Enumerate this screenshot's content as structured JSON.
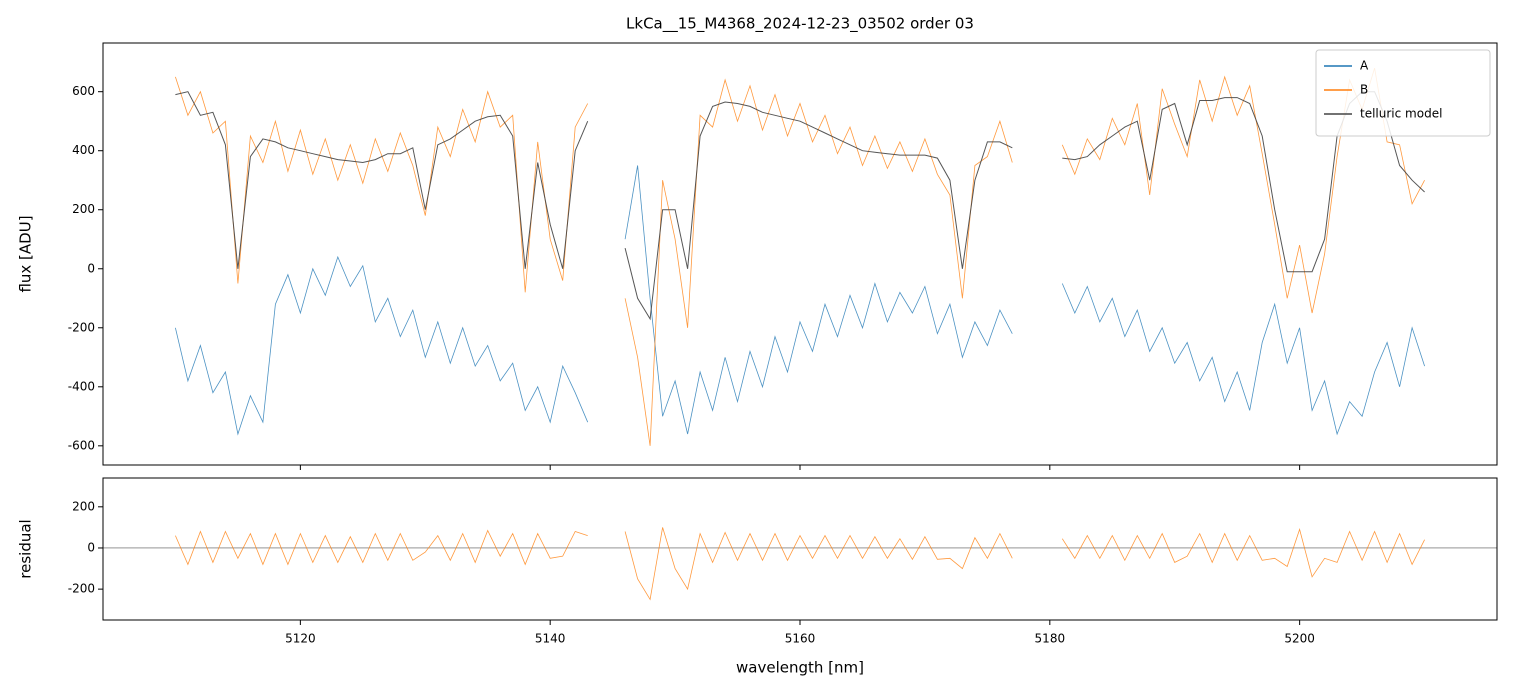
{
  "chart_data": [
    {
      "type": "line",
      "title": "LkCa__15_M4368_2024-12-23_03502  order 03",
      "ylabel": "flux [ADU]",
      "x": [
        5110,
        5111,
        5112,
        5113,
        5114,
        5115,
        5116,
        5117,
        5118,
        5119,
        5120,
        5121,
        5122,
        5123,
        5124,
        5125,
        5126,
        5127,
        5128,
        5129,
        5130,
        5131,
        5132,
        5133,
        5134,
        5135,
        5136,
        5137,
        5138,
        5139,
        5140,
        5141,
        5142,
        5143,
        5144.5,
        5146,
        5147,
        5148,
        5149,
        5150,
        5151,
        5152,
        5153,
        5154,
        5155,
        5156,
        5157,
        5158,
        5159,
        5160,
        5161,
        5162,
        5163,
        5164,
        5165,
        5166,
        5167,
        5168,
        5169,
        5170,
        5171,
        5172,
        5173,
        5174,
        5175,
        5176,
        5177,
        5179,
        5181,
        5182,
        5183,
        5184,
        5185,
        5186,
        5187,
        5188,
        5189,
        5190,
        5191,
        5192,
        5193,
        5194,
        5195,
        5196,
        5197,
        5198,
        5199,
        5200,
        5201,
        5202,
        5203,
        5204,
        5205,
        5206,
        5207,
        5208,
        5209,
        5210
      ],
      "series": [
        {
          "name": "A",
          "color": "#1f77b4",
          "values": [
            -200,
            -380,
            -260,
            -420,
            -350,
            -560,
            -430,
            -520,
            -120,
            -20,
            -150,
            0,
            -90,
            40,
            -60,
            10,
            -180,
            -100,
            -230,
            -140,
            -300,
            -180,
            -320,
            -200,
            -330,
            -260,
            -380,
            -320,
            -480,
            -400,
            -520,
            -330,
            -420,
            -520,
            null,
            100,
            350,
            -100,
            -500,
            -380,
            -560,
            -350,
            -480,
            -300,
            -450,
            -280,
            -400,
            -230,
            -350,
            -180,
            -280,
            -120,
            -230,
            -90,
            -200,
            -50,
            -180,
            -80,
            -150,
            -60,
            -220,
            -120,
            -300,
            -180,
            -260,
            -140,
            -220,
            null,
            -50,
            -150,
            -60,
            -180,
            -100,
            -230,
            -140,
            -280,
            -200,
            -320,
            -250,
            -380,
            -300,
            -450,
            -350,
            -480,
            -250,
            -120,
            -320,
            -200,
            -480,
            -380,
            -560,
            -450,
            -500,
            -350,
            -250,
            -400,
            -200,
            -330
          ]
        },
        {
          "name": "B",
          "color": "#ff7f0e",
          "values": [
            650,
            520,
            600,
            460,
            500,
            -50,
            450,
            360,
            500,
            330,
            470,
            320,
            440,
            300,
            420,
            290,
            440,
            330,
            460,
            350,
            180,
            480,
            380,
            540,
            430,
            600,
            480,
            520,
            -80,
            430,
            100,
            -40,
            480,
            560,
            null,
            -100,
            -300,
            -600,
            300,
            100,
            -200,
            520,
            480,
            640,
            500,
            620,
            470,
            590,
            450,
            560,
            430,
            520,
            390,
            480,
            350,
            450,
            340,
            430,
            330,
            440,
            320,
            250,
            -100,
            350,
            380,
            500,
            360,
            null,
            420,
            320,
            440,
            370,
            510,
            420,
            560,
            250,
            610,
            490,
            380,
            640,
            500,
            650,
            520,
            620,
            390,
            150,
            -100,
            80,
            -150,
            50,
            380,
            640,
            540,
            680,
            430,
            420,
            220,
            300
          ]
        },
        {
          "name": "telluric model",
          "color": "#444444",
          "values": [
            590,
            600,
            520,
            530,
            420,
            0,
            380,
            440,
            430,
            410,
            400,
            390,
            380,
            370,
            365,
            360,
            370,
            390,
            390,
            410,
            200,
            420,
            440,
            470,
            500,
            515,
            520,
            450,
            0,
            360,
            150,
            0,
            400,
            500,
            null,
            70,
            -100,
            -170,
            200,
            200,
            0,
            450,
            550,
            565,
            560,
            550,
            530,
            520,
            510,
            500,
            480,
            460,
            440,
            420,
            400,
            395,
            390,
            385,
            385,
            385,
            375,
            300,
            0,
            300,
            430,
            430,
            410,
            null,
            375,
            370,
            380,
            420,
            450,
            480,
            500,
            300,
            540,
            560,
            420,
            570,
            570,
            580,
            580,
            560,
            450,
            200,
            -10,
            -10,
            -10,
            100,
            450,
            560,
            600,
            600,
            500,
            350,
            300,
            260
          ]
        }
      ],
      "xlim": [
        5104.2,
        5215.8
      ],
      "ylim": [
        -665,
        765
      ],
      "xticks": [
        5120,
        5140,
        5160,
        5180,
        5200
      ],
      "yticks": [
        -600,
        -400,
        -200,
        0,
        200,
        400,
        600
      ],
      "legend": "upper right"
    },
    {
      "type": "line",
      "ylabel": "residual",
      "xlabel": "wavelength [nm]",
      "x": [
        5110,
        5111,
        5112,
        5113,
        5114,
        5115,
        5116,
        5117,
        5118,
        5119,
        5120,
        5121,
        5122,
        5123,
        5124,
        5125,
        5126,
        5127,
        5128,
        5129,
        5130,
        5131,
        5132,
        5133,
        5134,
        5135,
        5136,
        5137,
        5138,
        5139,
        5140,
        5141,
        5142,
        5143,
        5144.5,
        5146,
        5147,
        5148,
        5149,
        5150,
        5151,
        5152,
        5153,
        5154,
        5155,
        5156,
        5157,
        5158,
        5159,
        5160,
        5161,
        5162,
        5163,
        5164,
        5165,
        5166,
        5167,
        5168,
        5169,
        5170,
        5171,
        5172,
        5173,
        5174,
        5175,
        5176,
        5177,
        5179,
        5181,
        5182,
        5183,
        5184,
        5185,
        5186,
        5187,
        5188,
        5189,
        5190,
        5191,
        5192,
        5193,
        5194,
        5195,
        5196,
        5197,
        5198,
        5199,
        5200,
        5201,
        5202,
        5203,
        5204,
        5205,
        5206,
        5207,
        5208,
        5209,
        5210
      ],
      "series": [
        {
          "color": "#ff7f0e",
          "values": [
            60,
            -80,
            80,
            -70,
            80,
            -50,
            70,
            -80,
            70,
            -80,
            70,
            -70,
            60,
            -70,
            55,
            -70,
            70,
            -60,
            70,
            -60,
            -20,
            60,
            -60,
            70,
            -70,
            85,
            -40,
            70,
            -80,
            70,
            -50,
            -40,
            80,
            60,
            null,
            80,
            -150,
            -250,
            100,
            -100,
            -200,
            70,
            -70,
            75,
            -60,
            70,
            -60,
            70,
            -60,
            60,
            -50,
            60,
            -50,
            60,
            -50,
            55,
            -50,
            45,
            -55,
            55,
            -55,
            -50,
            -100,
            50,
            -50,
            70,
            -50,
            null,
            45,
            -50,
            60,
            -50,
            60,
            -60,
            60,
            -50,
            70,
            -70,
            -40,
            70,
            -70,
            70,
            -60,
            60,
            -60,
            -50,
            -90,
            90,
            -140,
            -50,
            -70,
            80,
            -60,
            80,
            -70,
            70,
            -80,
            40
          ]
        }
      ],
      "hline": 0,
      "xlim": [
        5104.2,
        5215.8
      ],
      "ylim": [
        -350,
        340
      ],
      "xticks": [
        5120,
        5140,
        5160,
        5180,
        5200
      ],
      "yticks": [
        -200,
        0,
        200
      ]
    }
  ]
}
